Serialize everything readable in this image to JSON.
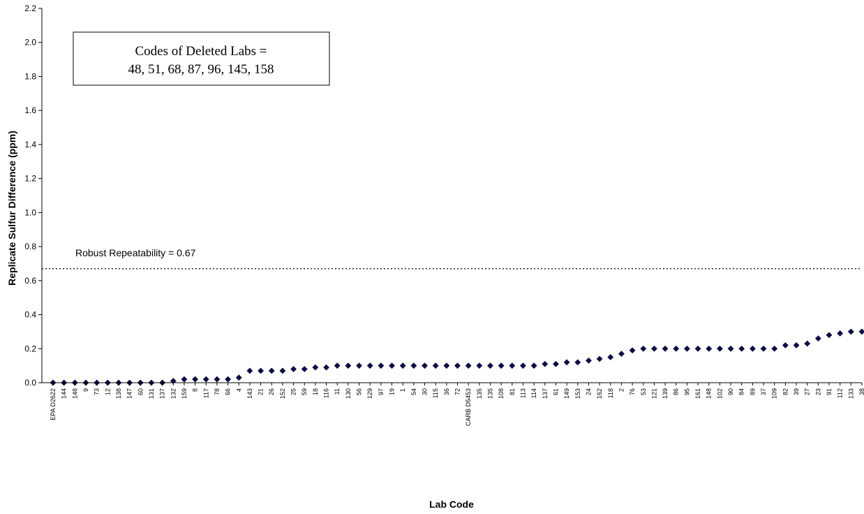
{
  "chart_data": {
    "type": "scatter",
    "title": "",
    "xlabel": "Lab Code",
    "ylabel": "Replicate Sulfur Difference (ppm)",
    "ylim": [
      0,
      2.2
    ],
    "yticks": [
      "0.0",
      "0.2",
      "0.4",
      "0.6",
      "0.8",
      "1.0",
      "1.2",
      "1.4",
      "1.6",
      "1.8",
      "2.0",
      "2.2"
    ],
    "grid": false,
    "marker": "diamond",
    "marker_color": "#0b0b4a",
    "categories": [
      "EPA D2622",
      "144",
      "148",
      "9",
      "73",
      "12",
      "138",
      "147",
      "60",
      "131",
      "137",
      "132",
      "159",
      "8",
      "117",
      "78",
      "66",
      "4",
      "143",
      "21",
      "26",
      "152",
      "25",
      "59",
      "18",
      "116",
      "11",
      "130",
      "56",
      "129",
      "97",
      "19",
      "1",
      "54",
      "30",
      "115",
      "36",
      "72",
      "CARB D5453",
      "135",
      "135",
      "108",
      "81",
      "113",
      "114",
      "137",
      "61",
      "149",
      "153",
      "24",
      "162",
      "118",
      "2",
      "76",
      "53",
      "121",
      "139",
      "86",
      "95",
      "161",
      "148",
      "102",
      "90",
      "84",
      "89",
      "37",
      "109",
      "82",
      "39",
      "27",
      "23",
      "91",
      "112",
      "133",
      "38"
    ],
    "values": [
      0,
      0,
      0,
      0,
      0,
      0,
      0,
      0,
      0,
      0,
      0,
      0.01,
      0.02,
      0.02,
      0.02,
      0.02,
      0.02,
      0.03,
      0.07,
      0.07,
      0.07,
      0.07,
      0.08,
      0.08,
      0.09,
      0.09,
      0.1,
      0.1,
      0.1,
      0.1,
      0.1,
      0.1,
      0.1,
      0.1,
      0.1,
      0.1,
      0.1,
      0.1,
      0.1,
      0.1,
      0.1,
      0.1,
      0.1,
      0.1,
      0.1,
      0.11,
      0.11,
      0.12,
      0.12,
      0.13,
      0.14,
      0.15,
      0.17,
      0.19,
      0.2,
      0.2,
      0.2,
      0.2,
      0.2,
      0.2,
      0.2,
      0.2,
      0.2,
      0.2,
      0.2,
      0.2,
      0.2,
      0.22,
      0.22,
      0.23,
      0.26,
      0.28,
      0.29,
      0.3,
      0.3
    ],
    "reference_line": {
      "value": 0.67,
      "style": "dotted",
      "label": "Robust Repeatability = 0.67"
    },
    "legend_box": {
      "line1": "Codes of Deleted Labs =",
      "line2": "48, 51, 68, 87, 96, 145, 158"
    }
  }
}
